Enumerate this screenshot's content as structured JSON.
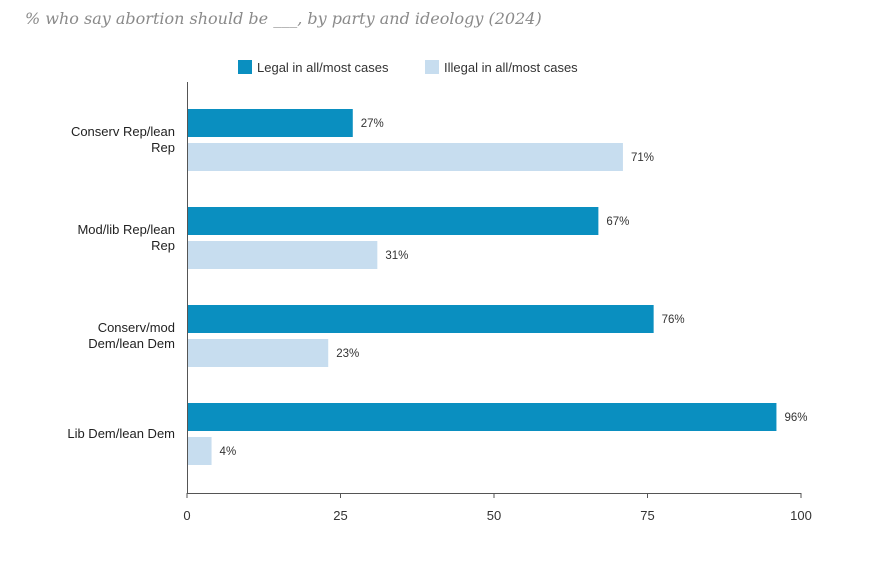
{
  "chart_data": {
    "type": "bar",
    "orientation": "horizontal",
    "title": "% who say abortion should be ___, by party and ideology (2024)",
    "categories": [
      [
        "Conserv Rep/lean",
        "Rep"
      ],
      [
        "Mod/lib Rep/lean",
        "Rep"
      ],
      [
        "Conserv/mod",
        "Dem/lean Dem"
      ],
      [
        "Lib Dem/lean Dem"
      ]
    ],
    "series": [
      {
        "name": "Legal in all/most cases",
        "color": "#0a8fc0",
        "values": [
          27,
          67,
          76,
          96
        ],
        "labels": [
          "27%",
          "67%",
          "76%",
          "96%"
        ]
      },
      {
        "name": "Illegal in all/most cases",
        "color": "#c7ddef",
        "values": [
          71,
          31,
          23,
          4
        ],
        "labels": [
          "71%",
          "31%",
          "23%",
          "4%"
        ]
      }
    ],
    "xlim": [
      0,
      100
    ],
    "xticks": [
      0,
      25,
      50,
      75,
      100
    ],
    "xtick_labels": [
      "0",
      "25",
      "50",
      "75",
      "100"
    ],
    "legend_position": "top",
    "grid": false
  }
}
